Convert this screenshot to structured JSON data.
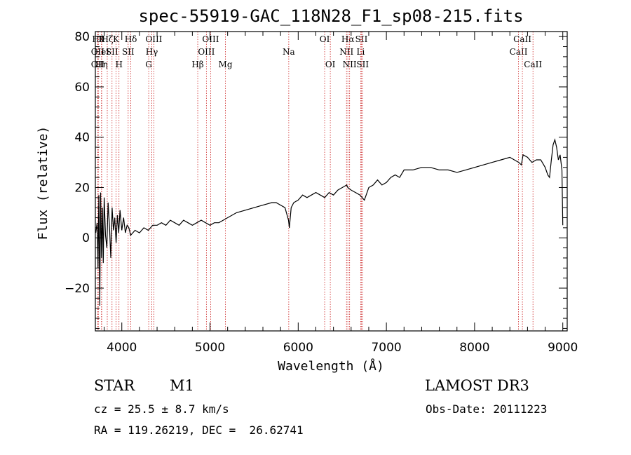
{
  "chart_data": {
    "type": "line",
    "title": "spec-55919-GAC_118N28_F1_sp08-215.fits",
    "xlabel": "Wavelength (Å)",
    "ylabel": "Flux (relative)",
    "xlim": [
      3700,
      9050
    ],
    "ylim": [
      -37,
      82
    ],
    "xticks": [
      4000,
      5000,
      6000,
      7000,
      8000,
      9000
    ],
    "yticks": [
      -20,
      0,
      20,
      40,
      60,
      80
    ],
    "ytick_labels": [
      "−20",
      "0",
      "20",
      "40",
      "60",
      "80"
    ],
    "series": [
      {
        "name": "spectrum",
        "x": [
          3705,
          3720,
          3730,
          3740,
          3750,
          3760,
          3770,
          3780,
          3790,
          3800,
          3815,
          3830,
          3845,
          3860,
          3875,
          3890,
          3905,
          3920,
          3935,
          3950,
          3965,
          3980,
          4000,
          4020,
          4040,
          4060,
          4080,
          4100,
          4150,
          4200,
          4250,
          4300,
          4350,
          4400,
          4450,
          4500,
          4550,
          4600,
          4650,
          4700,
          4750,
          4800,
          4850,
          4900,
          4950,
          5000,
          5050,
          5100,
          5150,
          5200,
          5300,
          5400,
          5500,
          5600,
          5700,
          5750,
          5800,
          5850,
          5890,
          5900,
          5920,
          5950,
          6000,
          6050,
          6100,
          6150,
          6200,
          6250,
          6300,
          6350,
          6400,
          6450,
          6500,
          6550,
          6563,
          6600,
          6650,
          6700,
          6750,
          6800,
          6850,
          6900,
          6950,
          7000,
          7050,
          7100,
          7150,
          7200,
          7300,
          7400,
          7500,
          7600,
          7700,
          7800,
          7900,
          8000,
          8100,
          8200,
          8300,
          8400,
          8450,
          8500,
          8530,
          8550,
          8600,
          8650,
          8700,
          8750,
          8800,
          8830,
          8850,
          8870,
          8890,
          8910,
          8930,
          8950,
          8970,
          8990,
          9000
        ],
        "values": [
          2,
          6,
          -12,
          17,
          -27,
          18,
          -8,
          12,
          -10,
          16,
          1,
          -4,
          14,
          5,
          -8,
          12,
          3,
          8,
          -2,
          9,
          2,
          11,
          3,
          8,
          2,
          5,
          4,
          1,
          3,
          2,
          4,
          3,
          5,
          5,
          6,
          5,
          7,
          6,
          5,
          7,
          6,
          5,
          6,
          7,
          6,
          5,
          6,
          6,
          7,
          8,
          10,
          11,
          12,
          13,
          14,
          14,
          13,
          12,
          7,
          4,
          12,
          14,
          15,
          17,
          16,
          17,
          18,
          17,
          16,
          18,
          17,
          19,
          20,
          21,
          20,
          19,
          18,
          17,
          15,
          20,
          21,
          23,
          21,
          22,
          24,
          25,
          24,
          27,
          27,
          28,
          28,
          27,
          27,
          26,
          27,
          28,
          29,
          30,
          31,
          32,
          31,
          30,
          29,
          33,
          32,
          30,
          31,
          31,
          28,
          25,
          24,
          31,
          37,
          39,
          36,
          31,
          33,
          27,
          5
        ]
      }
    ],
    "lines": [
      {
        "x": 3734,
        "label": "Hθ",
        "row": 1
      },
      {
        "x": 3727,
        "label": "OII",
        "row": 2
      },
      {
        "x": 3727,
        "label": "OII",
        "row": 3
      },
      {
        "x": 3770,
        "label": "K",
        "row": 1
      },
      {
        "x": 3770,
        "label": "HeI",
        "row": 2
      },
      {
        "x": 3771,
        "label": "Hη",
        "row": 3
      },
      {
        "x": 3835,
        "label": "Hζ",
        "row": 1
      },
      {
        "x": 3889,
        "label": "SII",
        "row": 2
      },
      {
        "x": 3934,
        "label": "K",
        "row": 1
      },
      {
        "x": 3968,
        "label": "H",
        "row": 3
      },
      {
        "x": 4102,
        "label": "Hδ",
        "row": 1
      },
      {
        "x": 4072,
        "label": "SII",
        "row": 2
      },
      {
        "x": 4340,
        "label": "Hγ",
        "row": 2
      },
      {
        "x": 4363,
        "label": "OIII",
        "row": 1
      },
      {
        "x": 4305,
        "label": "G",
        "row": 3
      },
      {
        "x": 4861,
        "label": "Hβ",
        "row": 3
      },
      {
        "x": 4959,
        "label": "OIII",
        "row": 2
      },
      {
        "x": 5007,
        "label": "OIII",
        "row": 1
      },
      {
        "x": 5175,
        "label": "Mg",
        "row": 3
      },
      {
        "x": 5893,
        "label": "Na",
        "row": 2
      },
      {
        "x": 6300,
        "label": "OI",
        "row": 1
      },
      {
        "x": 6364,
        "label": "OI",
        "row": 3
      },
      {
        "x": 6548,
        "label": "NII",
        "row": 2
      },
      {
        "x": 6563,
        "label": "Hα",
        "row": 1
      },
      {
        "x": 6583,
        "label": "NII",
        "row": 3
      },
      {
        "x": 6708,
        "label": "Li",
        "row": 2
      },
      {
        "x": 6717,
        "label": "SII",
        "row": 1
      },
      {
        "x": 6731,
        "label": "SII",
        "row": 3
      },
      {
        "x": 8498,
        "label": "CaII",
        "row": 2
      },
      {
        "x": 8542,
        "label": "CaII",
        "row": 1
      },
      {
        "x": 8662,
        "label": "CaII",
        "row": 3
      }
    ]
  },
  "info": {
    "object_class": "STAR",
    "subclass": "M1",
    "survey": "LAMOST DR3",
    "redshift_line": "cz = 25.5 ± 8.7 km/s",
    "obs_date_line": "Obs-Date: 20111223",
    "coords_line": "RA = 119.26219, DEC =  26.62741"
  },
  "colors": {
    "line_marker": "#cc2222",
    "spectrum": "#000000",
    "axes": "#000000"
  }
}
